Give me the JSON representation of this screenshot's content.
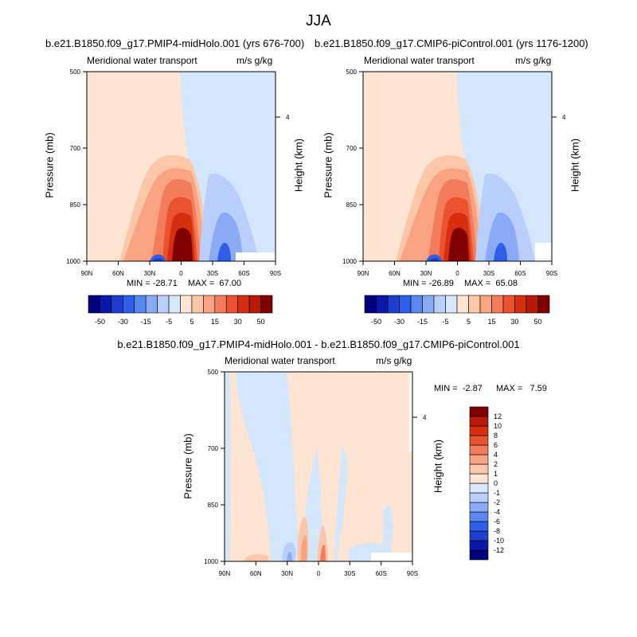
{
  "title": "JJA",
  "colors": {
    "bg_pos": "#fee5d3",
    "bg_neg": "#d3e6fb",
    "missing": "#ffffff"
  },
  "chart_data": [
    {
      "type": "heatmap",
      "name": "panel-1",
      "title": "b.e21.B1850.f09_g17.PMIP4-midHolo.001 (yrs 676-700)",
      "subtitle_left": "Meridional water transport",
      "subtitle_right": "m/s g/kg",
      "xlabel": "",
      "ylabel": "Pressure (mb)",
      "y2label": "Height (km)",
      "x_ticks": [
        "90N",
        "60N",
        "30N",
        "0",
        "30S",
        "60S",
        "90S"
      ],
      "y_ticks": [
        500,
        700,
        850,
        1000
      ],
      "y2_ticks": [
        4
      ],
      "min_label": "MIN = -28.71",
      "max_label": "MAX =  67.00",
      "min": -28.71,
      "max": 67.0
    },
    {
      "type": "heatmap",
      "name": "panel-2",
      "title": "b.e21.B1850.f09_g17.CMIP6-piControl.001 (yrs 1176-1200)",
      "subtitle_left": "Meridional water transport",
      "subtitle_right": "m/s g/kg",
      "xlabel": "",
      "ylabel": "Pressure (mb)",
      "y2label": "Height (km)",
      "x_ticks": [
        "90N",
        "60N",
        "30N",
        "0",
        "30S",
        "60S",
        "90S"
      ],
      "y_ticks": [
        500,
        700,
        850,
        1000
      ],
      "y2_ticks": [
        4
      ],
      "min_label": "MIN = -26.89",
      "max_label": "MAX =  65.08",
      "min": -26.89,
      "max": 65.08
    },
    {
      "type": "heatmap",
      "name": "panel-diff",
      "title": "b.e21.B1850.f09_g17.PMIP4-midHolo.001 - b.e21.B1850.f09_g17.CMIP6-piControl.001",
      "subtitle_left": "Meridional water transport",
      "subtitle_right": "m/s g/kg",
      "xlabel": "",
      "ylabel": "Pressure (mb)",
      "y2label": "Height (km)",
      "x_ticks": [
        "90N",
        "60N",
        "30N",
        "0",
        "30S",
        "60S",
        "90S"
      ],
      "y_ticks": [
        500,
        700,
        850,
        1000
      ],
      "y2_ticks": [
        4
      ],
      "min_label": "MIN =  -2.87",
      "max_label": "MAX =   7.59",
      "min": -2.87,
      "max": 7.59
    }
  ],
  "colorbar_main": {
    "colors": [
      "#00007f",
      "#0a18a8",
      "#1f3ecf",
      "#2f5ee8",
      "#5a86f0",
      "#8aaaf5",
      "#b9cefa",
      "#d8e7fc",
      "#fee5d3",
      "#fcc7a8",
      "#f8a382",
      "#f37c5c",
      "#ea5230",
      "#d52f0f",
      "#b81a05",
      "#7f0000"
    ],
    "labels": [
      "-50",
      "-30",
      "-15",
      "-5",
      "5",
      "15",
      "30",
      "50"
    ]
  },
  "colorbar_diff": {
    "colors": [
      "#00007f",
      "#0a18a8",
      "#1f3ecf",
      "#2f5ee8",
      "#5a86f0",
      "#8aaaf5",
      "#b9cefa",
      "#d8e7fc",
      "#fee5d3",
      "#fcc7a8",
      "#f8a382",
      "#f37c5c",
      "#ea5230",
      "#d52f0f",
      "#b81a05",
      "#7f0000"
    ],
    "labels": [
      "12",
      "10",
      "8",
      "6",
      "4",
      "2",
      "1",
      "0",
      "-1",
      "-2",
      "-4",
      "-6",
      "-8",
      "-10",
      "-12"
    ]
  }
}
